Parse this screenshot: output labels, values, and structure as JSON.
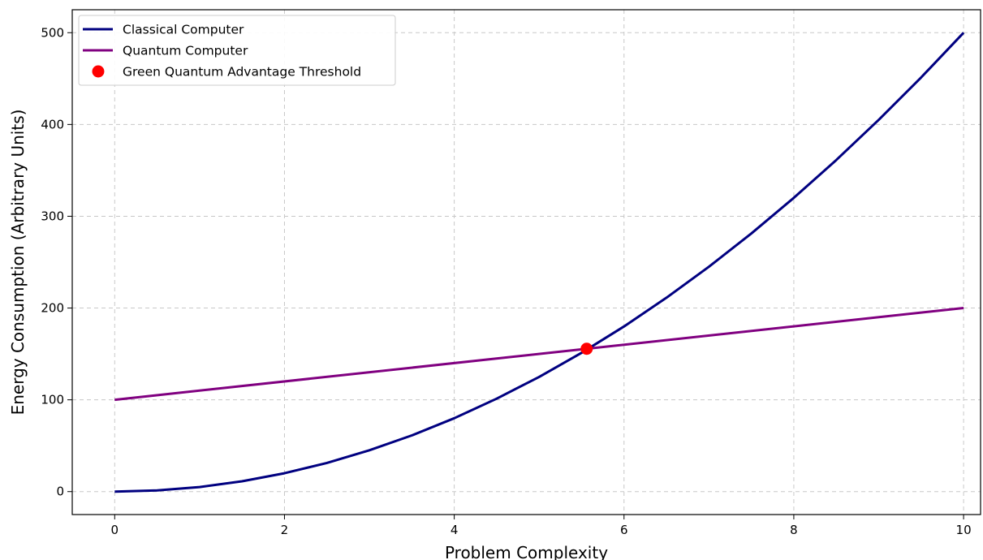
{
  "chart_data": {
    "type": "line",
    "title": "",
    "xlabel": "Problem Complexity",
    "ylabel": "Energy Consumption (Arbitrary Units)",
    "xlim": [
      -0.5,
      10.2
    ],
    "ylim": [
      -25,
      525
    ],
    "xticks": [
      0,
      2,
      4,
      6,
      8,
      10
    ],
    "yticks": [
      0,
      100,
      200,
      300,
      400,
      500
    ],
    "grid": true,
    "legend_position": "top-left",
    "series": [
      {
        "name": "Classical Computer",
        "color": "#000080",
        "kind": "line",
        "x": [
          0,
          0.5,
          1,
          1.5,
          2,
          2.5,
          3,
          3.5,
          4,
          4.5,
          5,
          5.5,
          6,
          6.5,
          7,
          7.5,
          8,
          8.5,
          9,
          9.5,
          10
        ],
        "y": [
          0,
          1.25,
          5,
          11.25,
          20,
          31.25,
          45,
          61.25,
          80,
          101.25,
          125,
          151.25,
          180,
          211.25,
          245,
          281.25,
          320,
          361.25,
          405,
          451.25,
          500
        ]
      },
      {
        "name": "Quantum Computer",
        "color": "#800080",
        "kind": "line",
        "x": [
          0,
          10
        ],
        "y": [
          100,
          200
        ]
      },
      {
        "name": "Green Quantum Advantage Threshold",
        "color": "#ff0000",
        "kind": "point",
        "x": [
          5.56
        ],
        "y": [
          155.6
        ]
      }
    ]
  }
}
